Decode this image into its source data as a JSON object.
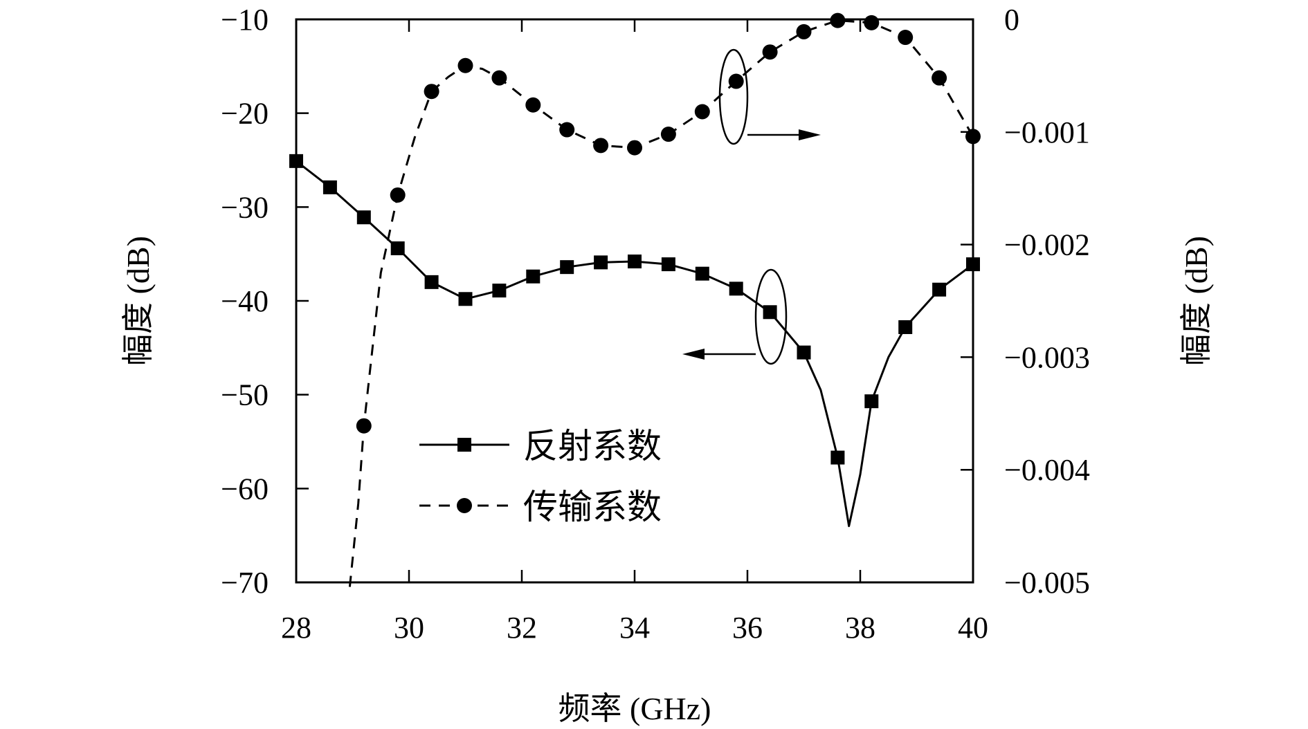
{
  "chart_data": {
    "type": "line",
    "xlabel": "频率 (GHz)",
    "ylabel_left": "幅度 (dB)",
    "ylabel_right": "幅度 (dB)",
    "xlim": [
      28,
      40
    ],
    "ylim_left": [
      -70,
      -10
    ],
    "ylim_right": [
      -0.005,
      0
    ],
    "x_ticks": [
      "28",
      "30",
      "32",
      "34",
      "36",
      "38",
      "40"
    ],
    "y_left_ticks": [
      "−10",
      "−20",
      "−30",
      "−40",
      "−50",
      "−60",
      "−70"
    ],
    "y_right_ticks": [
      "0",
      "−0.001",
      "−0.002",
      "−0.003",
      "−0.004",
      "−0.005"
    ],
    "legend_position": "bottom-left",
    "grid": false,
    "series": [
      {
        "name": "反射系数",
        "axis": "left",
        "line_style": "solid",
        "marker": "square",
        "curve": [
          [
            28,
            -25.1
          ],
          [
            28.6,
            -27.9
          ],
          [
            29.2,
            -31.1
          ],
          [
            29.8,
            -34.4
          ],
          [
            30.4,
            -38.0
          ],
          [
            31.0,
            -39.8
          ],
          [
            31.6,
            -38.9
          ],
          [
            32.2,
            -37.4
          ],
          [
            32.8,
            -36.4
          ],
          [
            33.4,
            -35.9
          ],
          [
            34.0,
            -35.8
          ],
          [
            34.6,
            -36.1
          ],
          [
            35.2,
            -37.1
          ],
          [
            35.8,
            -38.7
          ],
          [
            36.4,
            -41.2
          ],
          [
            37.0,
            -45.5
          ],
          [
            37.3,
            -49.5
          ],
          [
            37.6,
            -56.7
          ],
          [
            37.8,
            -64.0
          ],
          [
            38.0,
            -58.5
          ],
          [
            38.2,
            -50.7
          ],
          [
            38.5,
            -46.0
          ],
          [
            38.8,
            -42.8
          ],
          [
            39.4,
            -38.8
          ],
          [
            40.0,
            -36.1
          ]
        ],
        "markers": [
          [
            28,
            -25.1
          ],
          [
            28.6,
            -27.9
          ],
          [
            29.2,
            -31.1
          ],
          [
            29.8,
            -34.4
          ],
          [
            30.4,
            -38.0
          ],
          [
            31.0,
            -39.8
          ],
          [
            31.6,
            -38.9
          ],
          [
            32.2,
            -37.4
          ],
          [
            32.8,
            -36.4
          ],
          [
            33.4,
            -35.9
          ],
          [
            34.0,
            -35.8
          ],
          [
            34.6,
            -36.1
          ],
          [
            35.2,
            -37.1
          ],
          [
            35.8,
            -38.7
          ],
          [
            36.4,
            -41.2
          ],
          [
            37.0,
            -45.5
          ],
          [
            37.6,
            -56.7
          ],
          [
            38.2,
            -50.7
          ],
          [
            38.8,
            -42.8
          ],
          [
            39.4,
            -38.8
          ],
          [
            40.0,
            -36.1
          ]
        ]
      },
      {
        "name": "传输系数",
        "axis": "right",
        "line_style": "dashed",
        "marker": "circle",
        "curve": [
          [
            28.95,
            -0.00504
          ],
          [
            29.1,
            -0.0043
          ],
          [
            29.2,
            -0.00361
          ],
          [
            29.5,
            -0.00225
          ],
          [
            29.8,
            -0.00156
          ],
          [
            30.1,
            -0.00105
          ],
          [
            30.4,
            -0.00064
          ],
          [
            30.7,
            -0.00051
          ],
          [
            31.0,
            -0.00041
          ],
          [
            31.3,
            -0.00044
          ],
          [
            31.6,
            -0.00052
          ],
          [
            32.2,
            -0.00076
          ],
          [
            32.8,
            -0.00098
          ],
          [
            33.4,
            -0.00112
          ],
          [
            34.0,
            -0.00114
          ],
          [
            34.6,
            -0.00102
          ],
          [
            35.2,
            -0.00082
          ],
          [
            35.8,
            -0.00055
          ],
          [
            36.4,
            -0.00029
          ],
          [
            37.0,
            -0.00011
          ],
          [
            37.6,
            -1e-05
          ],
          [
            38.2,
            -3e-05
          ],
          [
            38.8,
            -0.00016
          ],
          [
            39.4,
            -0.00052
          ],
          [
            40.0,
            -0.00104
          ]
        ],
        "markers": [
          [
            29.2,
            -0.00361
          ],
          [
            29.8,
            -0.00156
          ],
          [
            30.4,
            -0.00064
          ],
          [
            31.0,
            -0.00041
          ],
          [
            31.6,
            -0.00052
          ],
          [
            32.2,
            -0.00076
          ],
          [
            32.8,
            -0.00098
          ],
          [
            33.4,
            -0.00112
          ],
          [
            34.0,
            -0.00114
          ],
          [
            34.6,
            -0.00102
          ],
          [
            35.2,
            -0.00082
          ],
          [
            35.8,
            -0.00055
          ],
          [
            36.4,
            -0.00029
          ],
          [
            37.0,
            -0.00011
          ],
          [
            37.6,
            -1e-05
          ],
          [
            38.2,
            -3e-05
          ],
          [
            38.8,
            -0.00016
          ],
          [
            39.4,
            -0.00052
          ],
          [
            40.0,
            -0.00104
          ]
        ]
      }
    ],
    "annotations": [
      {
        "kind": "ellipse-arrow",
        "series": "传输系数",
        "points_to": "right-axis"
      },
      {
        "kind": "ellipse-arrow",
        "series": "反射系数",
        "points_to": "left-axis"
      }
    ]
  }
}
